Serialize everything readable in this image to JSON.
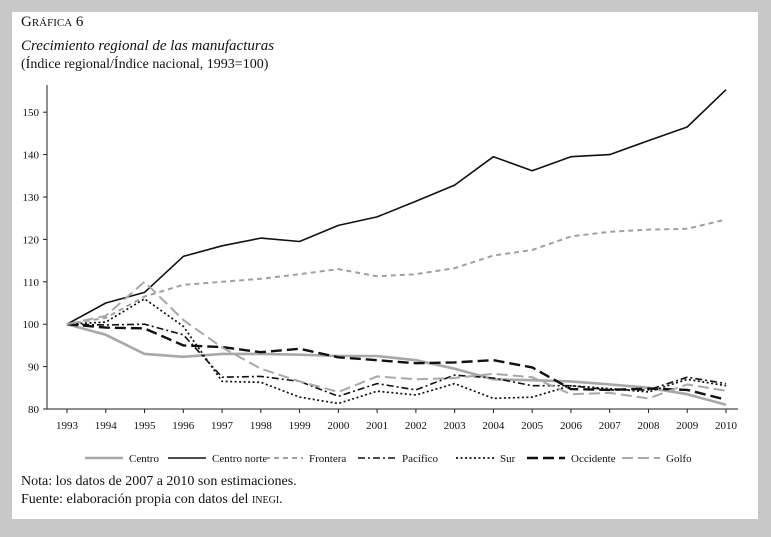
{
  "header": {
    "label": "Gráfica 6",
    "title": "Crecimiento regional de las manufacturas",
    "subtitle": "(Índice regional/Índice nacional, 1993=100)"
  },
  "notes": {
    "note": "Nota: los datos de 2007 a 2010 son estimaciones.",
    "source_prefix": "Fuente: elaboración propia con datos del ",
    "source_org": "inegi",
    "source_suffix": "."
  },
  "chart_data": {
    "type": "line",
    "title": "Crecimiento regional de las manufacturas",
    "subtitle": "(Índice regional/Índice nacional, 1993=100)",
    "xlabel": "",
    "ylabel": "",
    "x": [
      1993,
      1994,
      1995,
      1996,
      1997,
      1998,
      1999,
      2000,
      2001,
      2002,
      2003,
      2004,
      2005,
      2006,
      2007,
      2008,
      2009,
      2010
    ],
    "ylim": [
      80,
      155
    ],
    "yticks": [
      80,
      90,
      100,
      110,
      120,
      130,
      140,
      150
    ],
    "grid": false,
    "legend": "bottom",
    "series": [
      {
        "name": "Centro",
        "style": "solid-gray",
        "color": "#a8a8a8",
        "values": [
          100,
          97.5,
          93,
          92.3,
          93,
          93,
          92.8,
          92.5,
          92.5,
          91.5,
          89.5,
          87,
          86.8,
          86.5,
          85.8,
          85,
          83.5,
          81
        ]
      },
      {
        "name": "Centro norte",
        "style": "solid-black",
        "color": "#111111",
        "values": [
          100,
          105,
          107.5,
          116,
          118.5,
          120.3,
          119.5,
          123.3,
          125.3,
          129,
          132.8,
          139.5,
          136.2,
          139.5,
          140,
          143.3,
          146.5,
          155.3
        ]
      },
      {
        "name": "Frontera",
        "style": "dash-gray",
        "color": "#a0a0a0",
        "values": [
          100,
          101.5,
          106.5,
          109.3,
          110,
          110.7,
          111.8,
          113,
          111.3,
          111.8,
          113.2,
          116.2,
          117.5,
          120.7,
          121.8,
          122.3,
          122.5,
          124.7
        ]
      },
      {
        "name": "Pacífico",
        "style": "dashdot-black",
        "color": "#111111",
        "values": [
          100,
          99.8,
          100,
          97.5,
          87.5,
          87.7,
          86.5,
          83,
          86,
          84.5,
          88,
          87.3,
          85.5,
          85.5,
          84.5,
          84.5,
          87.5,
          86
        ]
      },
      {
        "name": "Sur",
        "style": "dotted-black",
        "color": "#111111",
        "values": [
          100,
          100.5,
          106,
          99.5,
          86.5,
          86.3,
          82.8,
          81.3,
          84.2,
          83.3,
          86,
          82.5,
          82.8,
          85.5,
          84.8,
          84,
          87,
          85.5
        ]
      },
      {
        "name": "Occidente",
        "style": "longdash-black",
        "color": "#111111",
        "values": [
          100,
          99.2,
          99,
          95,
          94.6,
          93.4,
          94.2,
          92.2,
          91.5,
          90.8,
          91,
          91.5,
          89.8,
          84.7,
          84.5,
          84.8,
          84.5,
          82.2
        ]
      },
      {
        "name": "Golfo",
        "style": "longdash-gray",
        "color": "#a8a8a8",
        "values": [
          100,
          102,
          110,
          101,
          94.5,
          89.5,
          86.5,
          84,
          87.7,
          87,
          87.3,
          88.3,
          87.5,
          83.5,
          83.8,
          82.5,
          85.8,
          84.3
        ]
      }
    ]
  }
}
